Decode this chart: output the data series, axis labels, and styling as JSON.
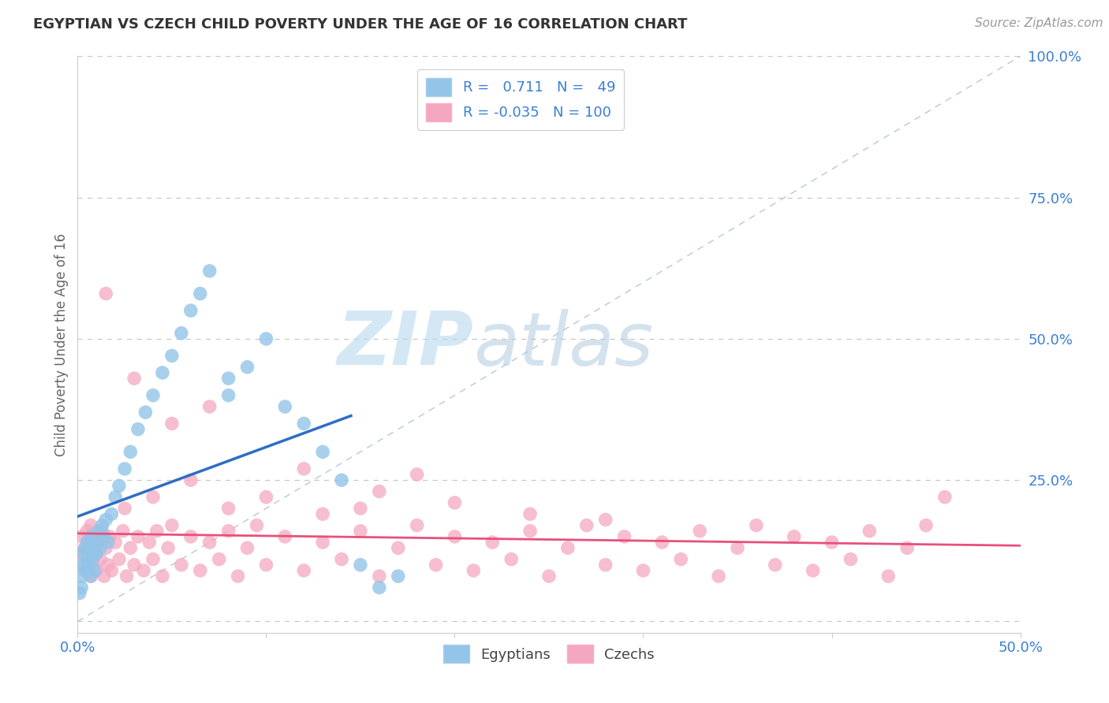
{
  "title": "EGYPTIAN VS CZECH CHILD POVERTY UNDER THE AGE OF 16 CORRELATION CHART",
  "source": "Source: ZipAtlas.com",
  "ylabel": "Child Poverty Under the Age of 16",
  "xlim": [
    0.0,
    0.5
  ],
  "ylim": [
    -0.02,
    1.0
  ],
  "xticks": [
    0.0,
    0.1,
    0.2,
    0.3,
    0.4,
    0.5
  ],
  "xticklabels": [
    "0.0%",
    "",
    "",
    "",
    "",
    "50.0%"
  ],
  "yticks": [
    0.0,
    0.25,
    0.5,
    0.75,
    1.0
  ],
  "yticklabels": [
    "",
    "25.0%",
    "50.0%",
    "75.0%",
    "100.0%"
  ],
  "egyptian_color": "#92C5E8",
  "czech_color": "#F4A8C0",
  "egyptian_line_color": "#2E6EC4",
  "czech_line_color": "#E8507A",
  "legend_R_egyptian": "0.711",
  "legend_N_egyptian": "49",
  "legend_R_czech": "-0.035",
  "legend_N_czech": "100",
  "watermark_ZIP": "ZIP",
  "watermark_atlas": "atlas",
  "background_color": "#FFFFFF",
  "grid_color": "#C8C8C8",
  "egyptians_x": [
    0.001,
    0.002,
    0.002,
    0.003,
    0.003,
    0.004,
    0.004,
    0.005,
    0.005,
    0.006,
    0.006,
    0.007,
    0.007,
    0.008,
    0.008,
    0.009,
    0.01,
    0.01,
    0.011,
    0.012,
    0.013,
    0.014,
    0.015,
    0.016,
    0.018,
    0.02,
    0.022,
    0.025,
    0.028,
    0.032,
    0.036,
    0.04,
    0.045,
    0.05,
    0.055,
    0.06,
    0.065,
    0.07,
    0.08,
    0.09,
    0.1,
    0.11,
    0.12,
    0.13,
    0.14,
    0.15,
    0.16,
    0.17,
    0.08
  ],
  "egyptians_y": [
    0.05,
    0.08,
    0.06,
    0.1,
    0.12,
    0.09,
    0.13,
    0.11,
    0.14,
    0.1,
    0.12,
    0.08,
    0.15,
    0.11,
    0.13,
    0.09,
    0.14,
    0.12,
    0.16,
    0.13,
    0.17,
    0.15,
    0.18,
    0.14,
    0.19,
    0.22,
    0.24,
    0.27,
    0.3,
    0.34,
    0.37,
    0.4,
    0.44,
    0.47,
    0.51,
    0.55,
    0.58,
    0.62,
    0.4,
    0.45,
    0.5,
    0.38,
    0.35,
    0.3,
    0.25,
    0.1,
    0.06,
    0.08,
    0.43
  ],
  "czechs_x": [
    0.001,
    0.002,
    0.003,
    0.004,
    0.005,
    0.005,
    0.006,
    0.006,
    0.007,
    0.007,
    0.008,
    0.008,
    0.009,
    0.01,
    0.01,
    0.011,
    0.012,
    0.013,
    0.014,
    0.015,
    0.016,
    0.017,
    0.018,
    0.02,
    0.022,
    0.024,
    0.026,
    0.028,
    0.03,
    0.032,
    0.035,
    0.038,
    0.04,
    0.042,
    0.045,
    0.048,
    0.05,
    0.055,
    0.06,
    0.065,
    0.07,
    0.075,
    0.08,
    0.085,
    0.09,
    0.095,
    0.1,
    0.11,
    0.12,
    0.13,
    0.14,
    0.15,
    0.16,
    0.17,
    0.18,
    0.19,
    0.2,
    0.21,
    0.22,
    0.23,
    0.24,
    0.25,
    0.26,
    0.27,
    0.28,
    0.29,
    0.3,
    0.31,
    0.32,
    0.33,
    0.34,
    0.35,
    0.36,
    0.37,
    0.38,
    0.39,
    0.4,
    0.41,
    0.42,
    0.43,
    0.44,
    0.45,
    0.025,
    0.04,
    0.06,
    0.08,
    0.1,
    0.13,
    0.16,
    0.2,
    0.24,
    0.28,
    0.015,
    0.03,
    0.05,
    0.07,
    0.12,
    0.18,
    0.46,
    0.15
  ],
  "czechs_y": [
    0.12,
    0.15,
    0.1,
    0.13,
    0.16,
    0.09,
    0.14,
    0.11,
    0.17,
    0.08,
    0.13,
    0.1,
    0.15,
    0.12,
    0.09,
    0.14,
    0.11,
    0.16,
    0.08,
    0.13,
    0.1,
    0.15,
    0.09,
    0.14,
    0.11,
    0.16,
    0.08,
    0.13,
    0.1,
    0.15,
    0.09,
    0.14,
    0.11,
    0.16,
    0.08,
    0.13,
    0.17,
    0.1,
    0.15,
    0.09,
    0.14,
    0.11,
    0.16,
    0.08,
    0.13,
    0.17,
    0.1,
    0.15,
    0.09,
    0.14,
    0.11,
    0.16,
    0.08,
    0.13,
    0.17,
    0.1,
    0.15,
    0.09,
    0.14,
    0.11,
    0.16,
    0.08,
    0.13,
    0.17,
    0.1,
    0.15,
    0.09,
    0.14,
    0.11,
    0.16,
    0.08,
    0.13,
    0.17,
    0.1,
    0.15,
    0.09,
    0.14,
    0.11,
    0.16,
    0.08,
    0.13,
    0.17,
    0.2,
    0.22,
    0.25,
    0.2,
    0.22,
    0.19,
    0.23,
    0.21,
    0.19,
    0.18,
    0.58,
    0.43,
    0.35,
    0.38,
    0.27,
    0.26,
    0.22,
    0.2
  ]
}
